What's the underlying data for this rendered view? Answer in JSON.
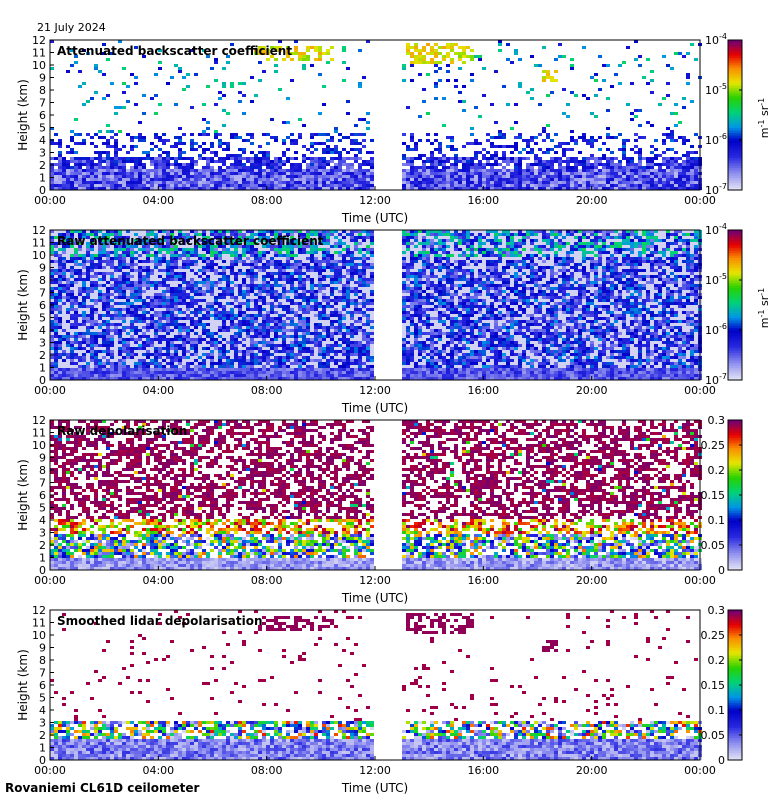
{
  "header": {
    "date": "21 July 2024"
  },
  "footer": {
    "instrument": "Rovaniemi CL61D ceilometer"
  },
  "chart_data": [
    {
      "type": "heatmap",
      "title": "Attenuated backscatter coefficient",
      "xlabel": "Time (UTC)",
      "ylabel": "Height (km)",
      "xticks": [
        "00:00",
        "04:00",
        "08:00",
        "12:00",
        "16:00",
        "20:00",
        "00:00"
      ],
      "yticks": [
        "0",
        "1",
        "2",
        "3",
        "4",
        "5",
        "6",
        "7",
        "8",
        "9",
        "10",
        "11",
        "12"
      ],
      "xlim_hours": [
        0,
        24
      ],
      "ylim_km": [
        0,
        12
      ],
      "data_gap_hours": [
        12.0,
        13.0
      ],
      "colorbar": {
        "scale": "log",
        "range": [
          1e-07,
          0.0001
        ],
        "ticks": [
          "10-7",
          "10-6",
          "10-5",
          "10-4"
        ],
        "tick_base": [
          "10",
          "10",
          "10",
          "10"
        ],
        "tick_exp": [
          "-7",
          "-6",
          "-5",
          "-4"
        ],
        "unit_parts": [
          "m",
          "-1",
          " sr",
          "-1"
        ],
        "colormap": "rainbow"
      },
      "features": [
        {
          "name": "boundary layer",
          "height_km": [
            0,
            2.6
          ]
        },
        {
          "name": "cirrus",
          "time_hours": [
            7.5,
            10.5
          ],
          "height_km": [
            10.4,
            11.6
          ]
        },
        {
          "name": "cirrus",
          "time_hours": [
            13.2,
            15.6
          ],
          "height_km": [
            10.0,
            11.8
          ]
        },
        {
          "name": "cloud patch",
          "time_hours": [
            18.2,
            18.7
          ],
          "height_km": [
            8.7,
            9.7
          ]
        }
      ]
    },
    {
      "type": "heatmap",
      "title": "Raw attenuated backscatter coefficient",
      "xlabel": "Time (UTC)",
      "ylabel": "Height (km)",
      "xticks": [
        "00:00",
        "04:00",
        "08:00",
        "12:00",
        "16:00",
        "20:00",
        "00:00"
      ],
      "yticks": [
        "0",
        "1",
        "2",
        "3",
        "4",
        "5",
        "6",
        "7",
        "8",
        "9",
        "10",
        "11",
        "12"
      ],
      "xlim_hours": [
        0,
        24
      ],
      "ylim_km": [
        0,
        12
      ],
      "data_gap_hours": [
        12.0,
        13.0
      ],
      "colorbar": {
        "scale": "log",
        "range": [
          1e-07,
          0.0001
        ],
        "ticks": [
          "10-7",
          "10-6",
          "10-5",
          "10-4"
        ],
        "tick_base": [
          "10",
          "10",
          "10",
          "10"
        ],
        "tick_exp": [
          "-7",
          "-6",
          "-5",
          "-4"
        ],
        "unit_parts": [
          "m",
          "-1",
          " sr",
          "-1"
        ],
        "colormap": "rainbow"
      }
    },
    {
      "type": "heatmap",
      "title": "Raw depolarisation",
      "xlabel": "Time (UTC)",
      "ylabel": "Height (km)",
      "xticks": [
        "00:00",
        "04:00",
        "08:00",
        "12:00",
        "16:00",
        "20:00",
        "00:00"
      ],
      "yticks": [
        "0",
        "1",
        "2",
        "3",
        "4",
        "5",
        "6",
        "7",
        "8",
        "9",
        "10",
        "11",
        "12"
      ],
      "xlim_hours": [
        0,
        24
      ],
      "ylim_km": [
        0,
        12
      ],
      "data_gap_hours": [
        12.0,
        13.0
      ],
      "colorbar": {
        "scale": "linear",
        "range": [
          0,
          0.3
        ],
        "ticks": [
          "0",
          "0.05",
          "0.1",
          "0.15",
          "0.2",
          "0.25",
          "0.3"
        ],
        "colormap": "rainbow"
      }
    },
    {
      "type": "heatmap",
      "title": "Smoothed lidar depolarisation",
      "xlabel": "Time (UTC)",
      "ylabel": "Height (km)",
      "xticks": [
        "00:00",
        "04:00",
        "08:00",
        "12:00",
        "16:00",
        "20:00",
        "00:00"
      ],
      "yticks": [
        "0",
        "1",
        "2",
        "3",
        "4",
        "5",
        "6",
        "7",
        "8",
        "9",
        "10",
        "11",
        "12"
      ],
      "xlim_hours": [
        0,
        24
      ],
      "ylim_km": [
        0,
        12
      ],
      "data_gap_hours": [
        12.0,
        13.0
      ],
      "colorbar": {
        "scale": "linear",
        "range": [
          0,
          0.3
        ],
        "ticks": [
          "0",
          "0.05",
          "0.1",
          "0.15",
          "0.2",
          "0.25",
          "0.3"
        ],
        "colormap": "rainbow"
      }
    }
  ]
}
